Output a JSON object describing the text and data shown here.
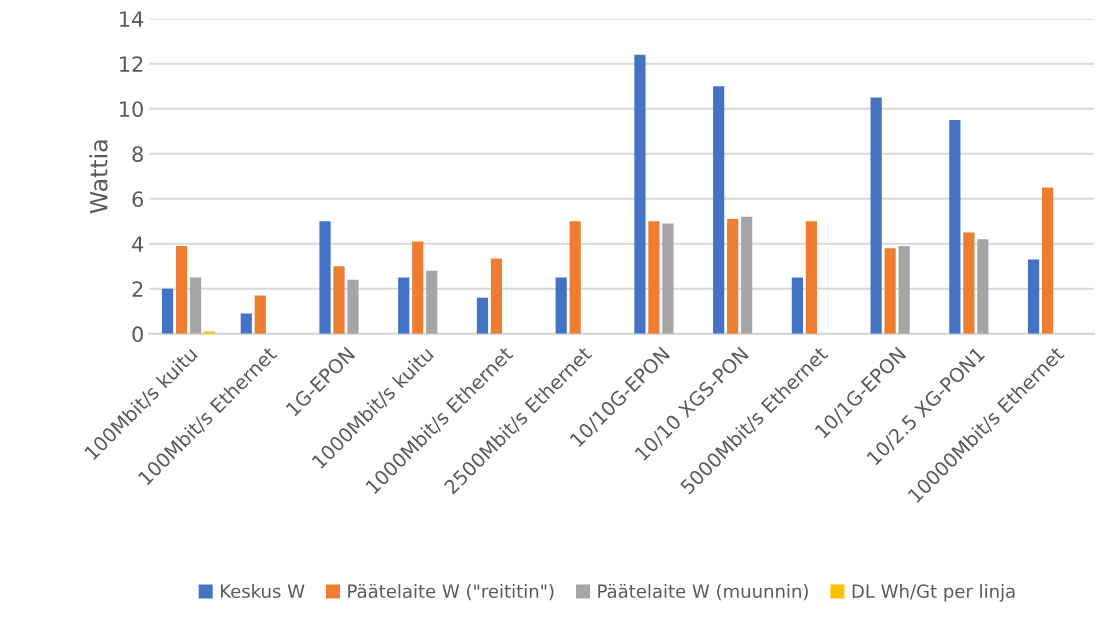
{
  "chart_data": {
    "type": "bar",
    "ylabel": "Wattia",
    "categories": [
      "100Mbit/s kuitu",
      "100Mbit/s Ethernet",
      "1G-EPON",
      "1000Mbit/s kuitu",
      "1000Mbit/s Ethernet",
      "2500Mbit/s Ethernet",
      "10/10G-EPON",
      "10/10 XGS-PON",
      "5000Mbit/s Ethernet",
      "10/1G-EPON",
      "10/2.5 XG-PON1",
      "10000Mbit/s Ethernet"
    ],
    "series": [
      {
        "name": "Keskus W",
        "color": "#4472c4",
        "values": [
          2.0,
          0.9,
          5.0,
          2.5,
          1.6,
          2.5,
          12.4,
          11.0,
          2.5,
          10.5,
          9.5,
          3.3
        ]
      },
      {
        "name": "Päätelaite W (\"reititin\")",
        "color": "#ed7d31",
        "values": [
          3.9,
          1.7,
          3.0,
          4.1,
          3.35,
          5.0,
          5.0,
          5.1,
          5.0,
          3.8,
          4.5,
          6.5
        ]
      },
      {
        "name": "Päätelaite W (muunnin)",
        "color": "#a5a5a5",
        "values": [
          2.5,
          null,
          2.4,
          2.8,
          null,
          null,
          4.9,
          5.2,
          null,
          3.9,
          4.2,
          null
        ]
      },
      {
        "name": "DL Wh/Gt per linja",
        "color": "#ffc000",
        "values": [
          0.1,
          null,
          null,
          null,
          null,
          null,
          null,
          null,
          null,
          null,
          null,
          null
        ]
      }
    ],
    "ylim": [
      0,
      14
    ],
    "yticks": [
      0,
      2,
      4,
      6,
      8,
      10,
      12,
      14
    ],
    "grid": "y",
    "legend": "bottom"
  }
}
